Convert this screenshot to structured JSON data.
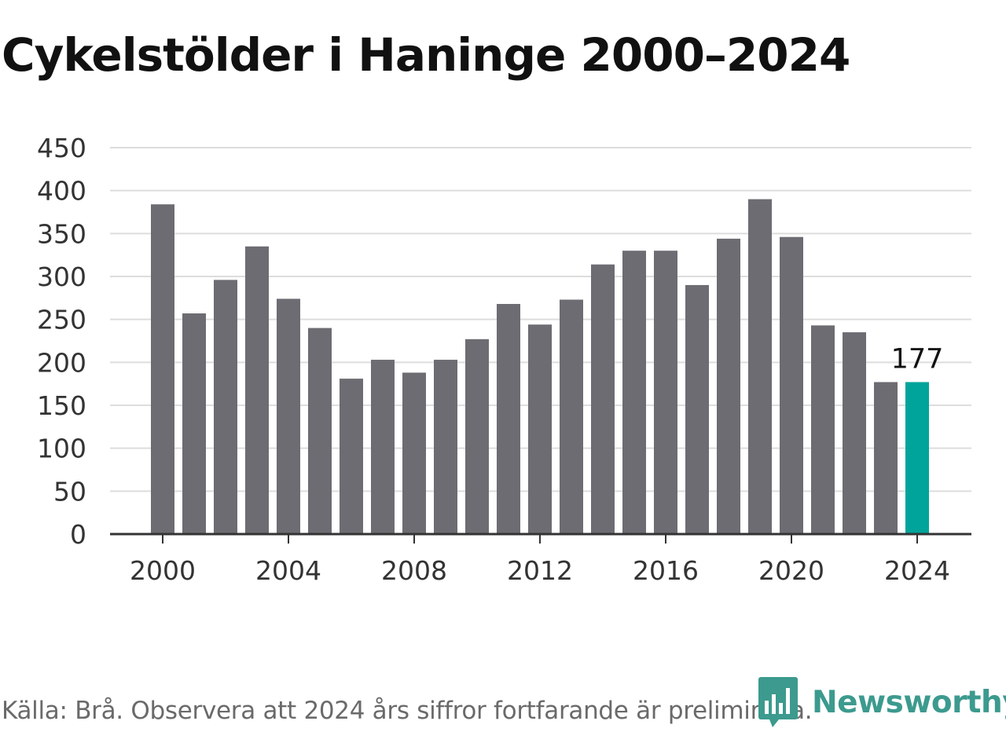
{
  "title": "Cykelstölder i Haninge 2000–2024",
  "source_note": "Källa: Brå. Observera att 2024 års siffror fortfarande är preliminära.",
  "brand": {
    "name": "Newsworthy",
    "icon": "newsworthy-logo-icon"
  },
  "colors": {
    "bar": "#6d6c72",
    "highlight": "#00a49a",
    "grid": "#dddddd",
    "axis": "#333333",
    "text": "#333333",
    "brand": "#3c9a8e"
  },
  "chart_data": {
    "type": "bar",
    "categories": [
      "2000",
      "2001",
      "2002",
      "2003",
      "2004",
      "2005",
      "2006",
      "2007",
      "2008",
      "2009",
      "2010",
      "2011",
      "2012",
      "2013",
      "2014",
      "2015",
      "2016",
      "2017",
      "2018",
      "2019",
      "2020",
      "2021",
      "2022",
      "2023",
      "2024"
    ],
    "values": [
      384,
      257,
      296,
      335,
      274,
      240,
      181,
      203,
      188,
      203,
      227,
      268,
      244,
      273,
      314,
      330,
      330,
      290,
      344,
      390,
      346,
      243,
      235,
      177,
      177
    ],
    "highlight_category": "2024",
    "annotations": [
      {
        "category": "2024",
        "text": "177"
      }
    ],
    "x_tick_labels": [
      "2000",
      "2004",
      "2008",
      "2012",
      "2016",
      "2020",
      "2024"
    ],
    "y_tick_labels": [
      "0",
      "50",
      "100",
      "150",
      "200",
      "250",
      "300",
      "350",
      "400",
      "450"
    ],
    "ylim": [
      0,
      450
    ],
    "grid": true,
    "xlabel": "",
    "ylabel": ""
  }
}
